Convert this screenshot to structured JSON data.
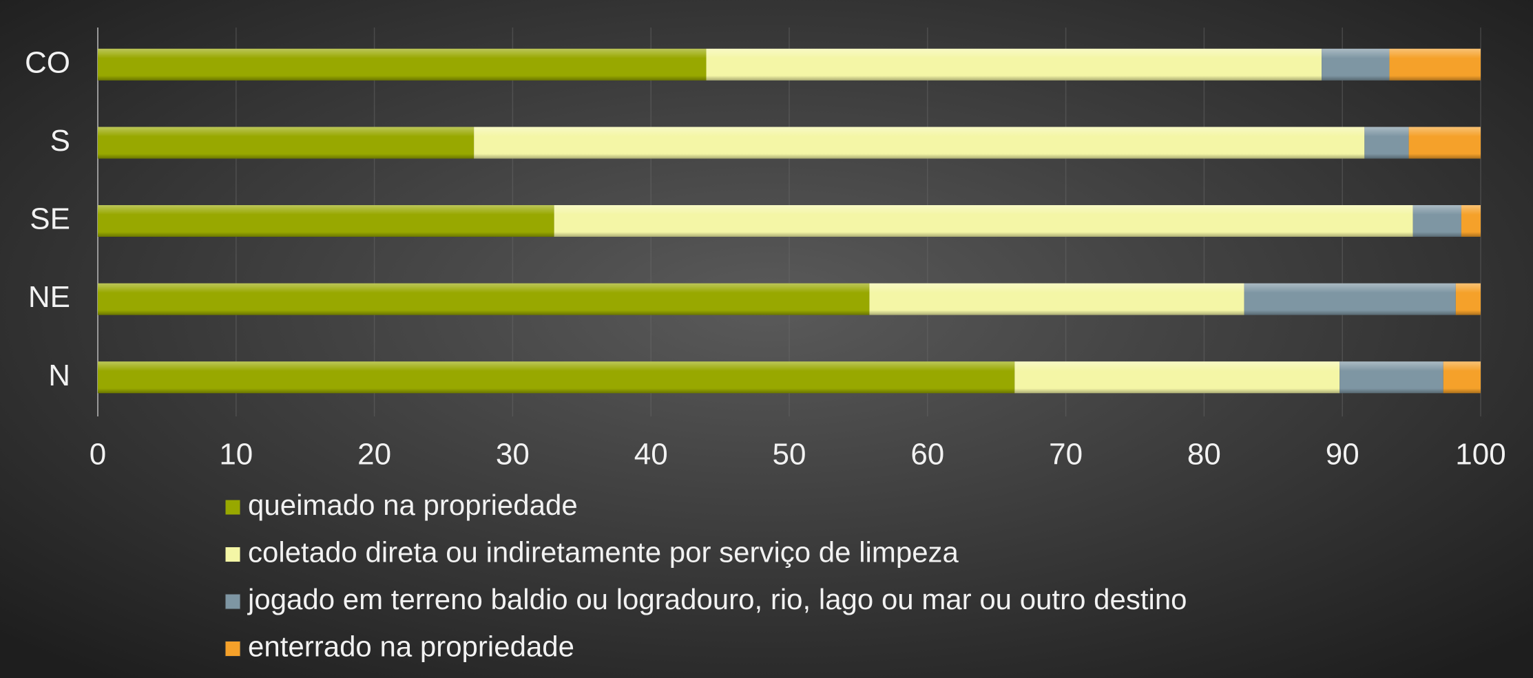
{
  "chart_data": {
    "type": "stacked-barh",
    "categories": [
      "CO",
      "S",
      "SE",
      "NE",
      "N"
    ],
    "series": [
      {
        "name": "queimado na propriedade",
        "color": "#98a800",
        "values": [
          44,
          27.2,
          33,
          55.8,
          66.3
        ]
      },
      {
        "name": "coletado direta ou indiretamente por serviço de limpeza",
        "color": "#f4f6a6",
        "values": [
          44.5,
          64.4,
          62.1,
          27.1,
          23.5
        ]
      },
      {
        "name": "jogado em terreno baldio ou logradouro, rio, lago ou mar ou outro destino",
        "color": "#7e96a3",
        "values": [
          4.9,
          3.2,
          3.5,
          15.3,
          7.5
        ]
      },
      {
        "name": "enterrado na propriedade",
        "color": "#f5a12a",
        "values": [
          6.6,
          5.2,
          1.4,
          1.8,
          2.7
        ]
      }
    ],
    "xlim": [
      0,
      100
    ],
    "xticks": [
      0,
      10,
      20,
      30,
      40,
      50,
      60,
      70,
      80,
      90,
      100
    ],
    "grid": true
  }
}
